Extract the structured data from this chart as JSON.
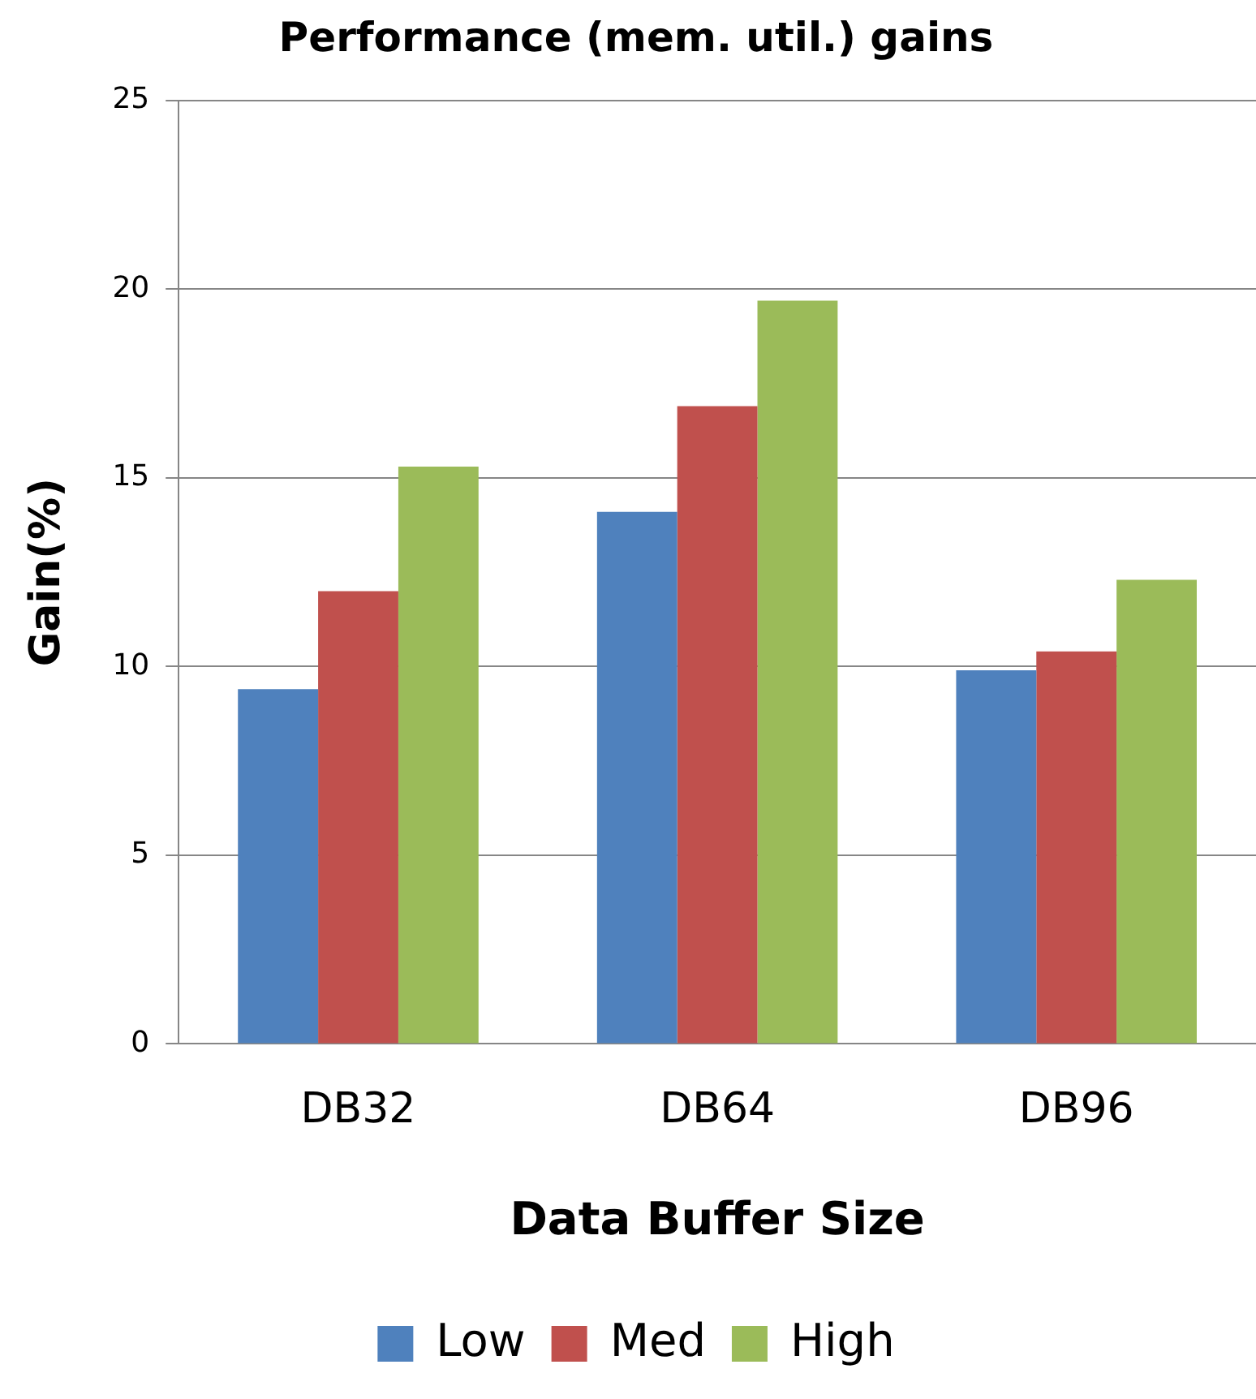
{
  "chart_data": {
    "type": "bar",
    "title": "Performance (mem. util.) gains",
    "xlabel": "Data Buffer Size",
    "ylabel": "Gain(%)",
    "categories": [
      "DB32",
      "DB64",
      "DB96"
    ],
    "series": [
      {
        "name": "Low",
        "color": "#4f81bd",
        "values": [
          9.4,
          14.1,
          9.9
        ]
      },
      {
        "name": "Med",
        "color": "#c0504d",
        "values": [
          12.0,
          16.9,
          10.4
        ]
      },
      {
        "name": "High",
        "color": "#9bbb59",
        "values": [
          15.3,
          19.7,
          12.3
        ]
      }
    ],
    "ylim": [
      0,
      25
    ],
    "yticks": [
      0,
      5,
      10,
      15,
      20,
      25
    ],
    "grid": "y",
    "legend": "bottom"
  }
}
